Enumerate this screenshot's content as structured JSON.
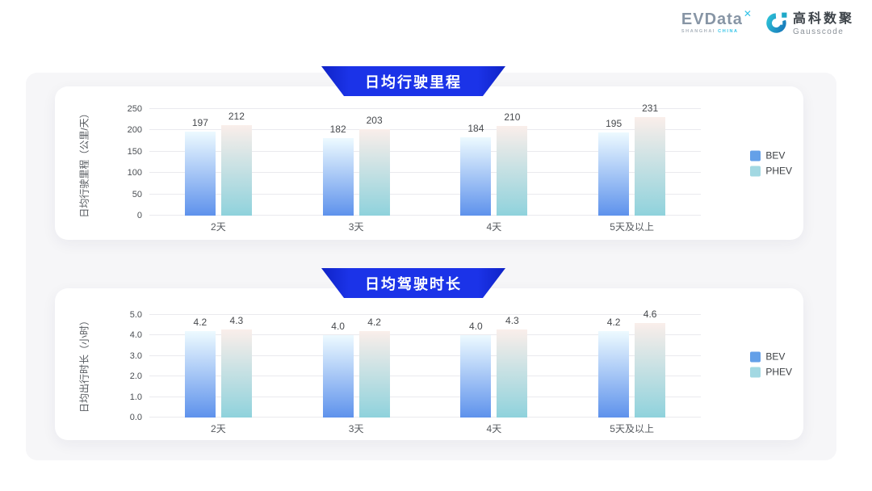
{
  "brand": {
    "evdata": {
      "name": "EVData",
      "sup_mark": "✕",
      "subtext_left": "SHANGHAI",
      "subtext_right": "CHINA"
    },
    "gausscode": {
      "cn": "高科数聚",
      "en": "Gausscode"
    }
  },
  "colors": {
    "accent_blue": "#1b33e8",
    "accent_blue_dark": "#0f23c6",
    "bev_gradient_top": "#edfaff",
    "bev_gradient_bottom": "#5e92ec",
    "phev_gradient_top": "#faeeea",
    "phev_gradient_bottom": "#8fd2dc",
    "bev_legend": "#64a0e8",
    "phev_legend": "#a2d8e2",
    "panel_bg": "#f6f6f8",
    "card_bg": "#ffffff"
  },
  "chart_data": [
    {
      "type": "bar",
      "title": "日均行驶里程",
      "ylabel": "日均行驶里程（公里/天）",
      "xlabel": "",
      "categories": [
        "2天",
        "3天",
        "4天",
        "5天及以上"
      ],
      "series": [
        {
          "name": "BEV",
          "values": [
            197,
            182,
            184,
            195
          ]
        },
        {
          "name": "PHEV",
          "values": [
            212,
            203,
            210,
            231
          ]
        }
      ],
      "ylim": [
        0,
        250
      ],
      "yticks": [
        "0",
        "50",
        "100",
        "150",
        "200",
        "250"
      ],
      "value_format": "int",
      "grid": true,
      "legend_position": "right"
    },
    {
      "type": "bar",
      "title": "日均驾驶时长",
      "ylabel": "日均出行时长（小时）",
      "xlabel": "",
      "categories": [
        "2天",
        "3天",
        "4天",
        "5天及以上"
      ],
      "series": [
        {
          "name": "BEV",
          "values": [
            4.2,
            4.0,
            4.0,
            4.2
          ]
        },
        {
          "name": "PHEV",
          "values": [
            4.3,
            4.2,
            4.3,
            4.6
          ]
        }
      ],
      "ylim": [
        0,
        5
      ],
      "yticks": [
        "0.0",
        "1.0",
        "2.0",
        "3.0",
        "4.0",
        "5.0"
      ],
      "value_format": "1dp",
      "grid": true,
      "legend_position": "right"
    }
  ]
}
